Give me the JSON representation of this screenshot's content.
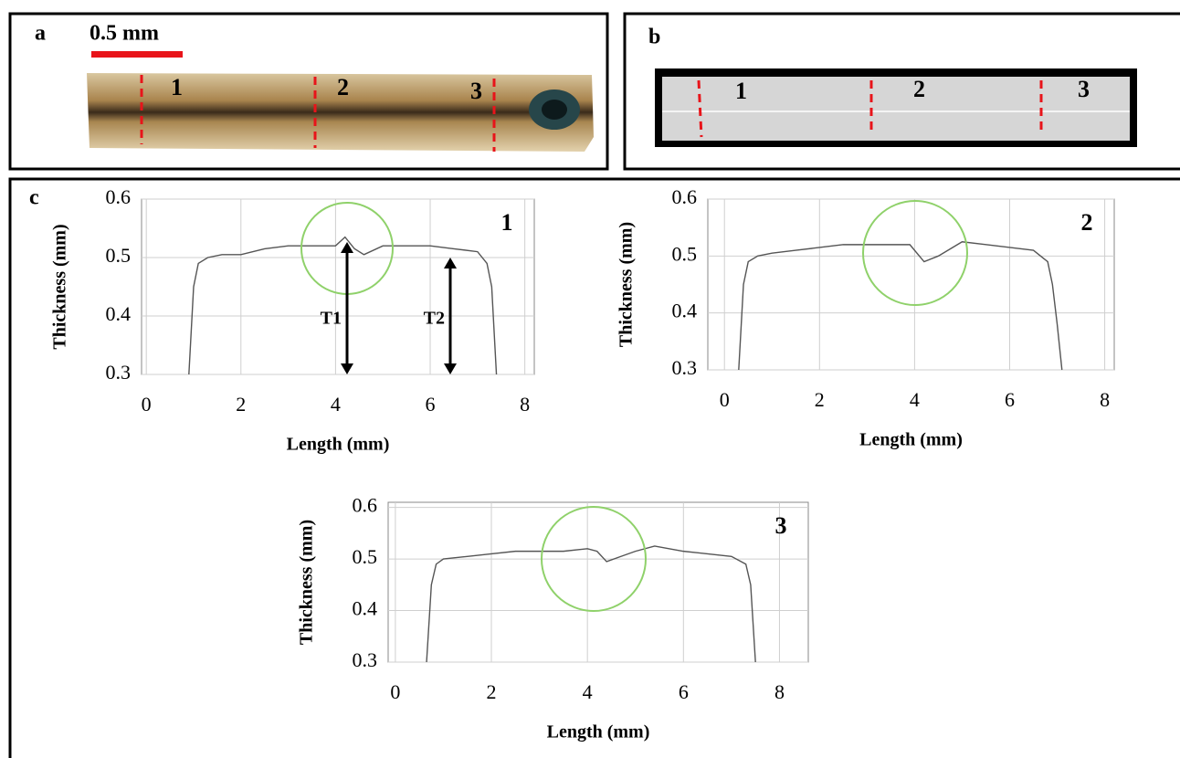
{
  "panels": {
    "a": {
      "label": "a",
      "scale_bar": "0.5 mm",
      "markers": [
        "1",
        "2",
        "3"
      ]
    },
    "b": {
      "label": "b",
      "markers": [
        "1",
        "2",
        "3"
      ]
    },
    "c": {
      "label": "c"
    }
  },
  "chart_data": [
    {
      "type": "line",
      "annotation": "1",
      "arrow_labels": [
        "T1",
        "T2"
      ],
      "xlabel": "Length (mm)",
      "ylabel": "Thickness (mm)",
      "x": [
        0.9,
        1.0,
        1.1,
        1.3,
        1.6,
        2.0,
        2.5,
        3.0,
        3.5,
        4.0,
        4.2,
        4.4,
        4.6,
        5.0,
        5.5,
        6.0,
        6.5,
        7.0,
        7.2,
        7.3,
        7.4
      ],
      "series": [
        {
          "color": "#555555",
          "values": [
            0.3,
            0.45,
            0.49,
            0.5,
            0.505,
            0.505,
            0.515,
            0.52,
            0.52,
            0.52,
            0.535,
            0.515,
            0.505,
            0.52,
            0.52,
            0.52,
            0.515,
            0.51,
            0.49,
            0.45,
            0.3
          ]
        }
      ],
      "xlim": [
        -0.1,
        8.2
      ],
      "xticks": [
        0,
        2,
        4,
        6,
        8
      ],
      "ylim": [
        0.3,
        0.6
      ],
      "yticks": [
        0.3,
        0.4,
        0.5,
        0.6
      ],
      "grid": true
    },
    {
      "type": "line",
      "annotation": "2",
      "xlabel": "Length (mm)",
      "ylabel": "Thickness (mm)",
      "x": [
        0.3,
        0.4,
        0.5,
        0.7,
        1.0,
        1.5,
        2.0,
        2.5,
        3.0,
        3.5,
        3.9,
        4.2,
        4.5,
        4.8,
        5.0,
        5.5,
        6.0,
        6.5,
        6.8,
        6.9,
        7.0,
        7.1
      ],
      "series": [
        {
          "color": "#555555",
          "values": [
            0.3,
            0.45,
            0.49,
            0.5,
            0.505,
            0.51,
            0.515,
            0.52,
            0.52,
            0.52,
            0.52,
            0.49,
            0.5,
            0.515,
            0.525,
            0.52,
            0.515,
            0.51,
            0.49,
            0.45,
            0.38,
            0.3
          ]
        }
      ],
      "xlim": [
        -0.35,
        8.2
      ],
      "xticks": [
        0,
        2,
        4,
        6,
        8
      ],
      "ylim": [
        0.3,
        0.6
      ],
      "yticks": [
        0.3,
        0.4,
        0.5,
        0.6
      ],
      "grid": true
    },
    {
      "type": "line",
      "annotation": "3",
      "xlabel": "Length (mm)",
      "ylabel": "Thickness (mm)",
      "x": [
        0.65,
        0.75,
        0.85,
        1.0,
        1.5,
        2.0,
        2.5,
        3.0,
        3.5,
        4.0,
        4.2,
        4.4,
        4.7,
        5.0,
        5.4,
        6.0,
        6.5,
        7.0,
        7.3,
        7.4,
        7.5
      ],
      "series": [
        {
          "color": "#555555",
          "values": [
            0.3,
            0.45,
            0.49,
            0.5,
            0.505,
            0.51,
            0.515,
            0.515,
            0.515,
            0.52,
            0.515,
            0.495,
            0.505,
            0.515,
            0.525,
            0.515,
            0.51,
            0.505,
            0.49,
            0.45,
            0.3
          ]
        }
      ],
      "xlim": [
        -0.15,
        8.6
      ],
      "xticks": [
        0,
        2,
        4,
        6,
        8
      ],
      "ylim": [
        0.3,
        0.61
      ],
      "yticks": [
        0.3,
        0.4,
        0.5,
        0.6
      ],
      "grid": true
    }
  ]
}
